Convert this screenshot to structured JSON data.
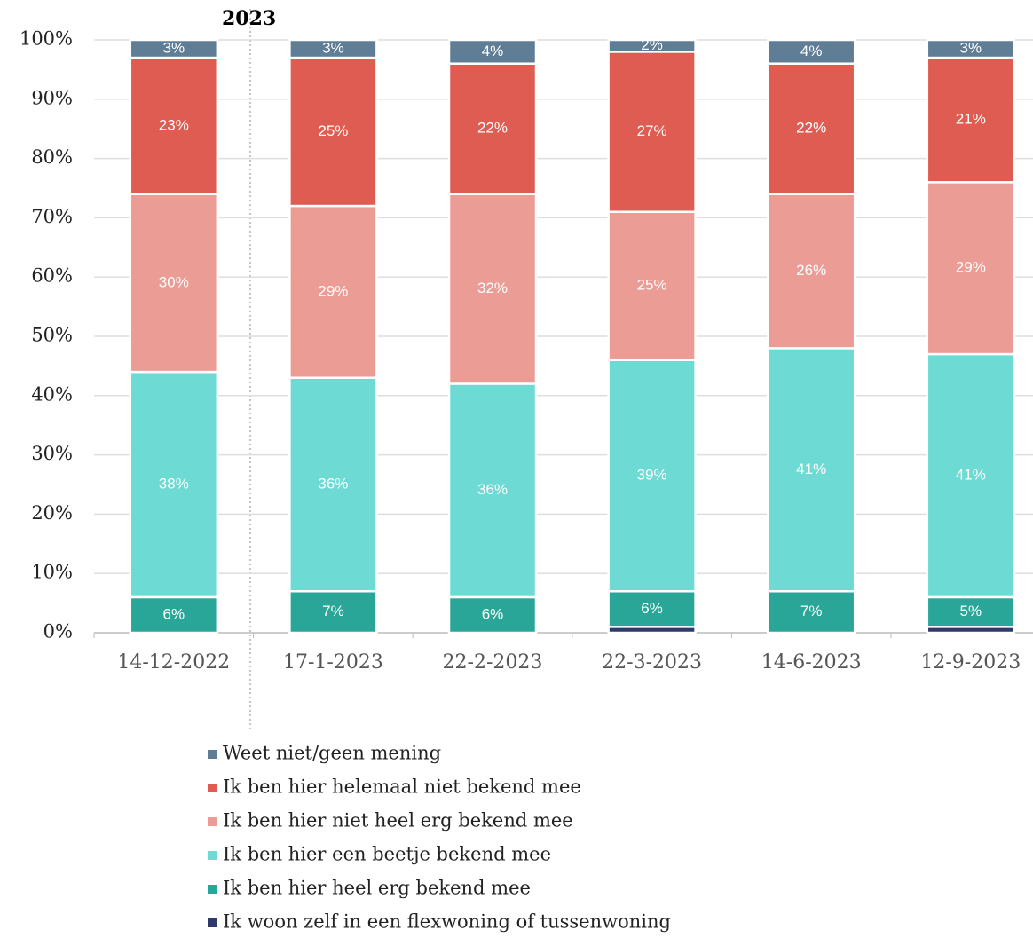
{
  "chart_data": {
    "type": "stacked_bar",
    "annotation": "2023",
    "categories": [
      "14-12-2022",
      "17-1-2023",
      "22-2-2023",
      "22-3-2023",
      "14-6-2023",
      "12-9-2023"
    ],
    "series": [
      {
        "name": "Ik woon zelf in een flexwoning of tussenwoning",
        "color": "#2f3a6a",
        "values": [
          0,
          0,
          0,
          1,
          0,
          1
        ]
      },
      {
        "name": "Ik ben hier heel erg bekend mee",
        "color": "#2aa698",
        "values": [
          6,
          7,
          6,
          6,
          7,
          5
        ],
        "value_labels": [
          "6%",
          "7%",
          "6%",
          "6%",
          "7%",
          "5%"
        ]
      },
      {
        "name": "Ik ben hier een beetje bekend mee",
        "color": "#6ddad3",
        "values": [
          38,
          36,
          36,
          39,
          41,
          41
        ],
        "value_labels": [
          "38%",
          "36%",
          "36%",
          "39%",
          "41%",
          "41%"
        ]
      },
      {
        "name": "Ik ben hier niet heel erg bekend mee",
        "color": "#ea9c95",
        "values": [
          30,
          29,
          32,
          25,
          26,
          29
        ],
        "value_labels": [
          "30%",
          "29%",
          "32%",
          "25%",
          "26%",
          "29%"
        ]
      },
      {
        "name": "Ik ben hier helemaal niet bekend mee",
        "color": "#de5c51",
        "values": [
          23,
          25,
          22,
          27,
          22,
          21
        ],
        "value_labels": [
          "23%",
          "25%",
          "22%",
          "27%",
          "22%",
          "21%"
        ]
      },
      {
        "name": "Weet niet/geen mening",
        "color": "#5f7d95",
        "values": [
          3,
          3,
          4,
          2,
          4,
          3
        ],
        "value_labels": [
          "3%",
          "3%",
          "4%",
          "2%",
          "4%",
          "3%"
        ]
      }
    ],
    "ylim": [
      0,
      100
    ],
    "yticks": [
      {
        "value": 0,
        "label": "0%"
      },
      {
        "value": 10,
        "label": "10%"
      },
      {
        "value": 20,
        "label": "20%"
      },
      {
        "value": 30,
        "label": "30%"
      },
      {
        "value": 40,
        "label": "40%"
      },
      {
        "value": 50,
        "label": "50%"
      },
      {
        "value": 60,
        "label": "60%"
      },
      {
        "value": 70,
        "label": "70%"
      },
      {
        "value": 80,
        "label": "80%"
      },
      {
        "value": 90,
        "label": "90%"
      },
      {
        "value": 100,
        "label": "100%"
      }
    ],
    "grid": true
  }
}
